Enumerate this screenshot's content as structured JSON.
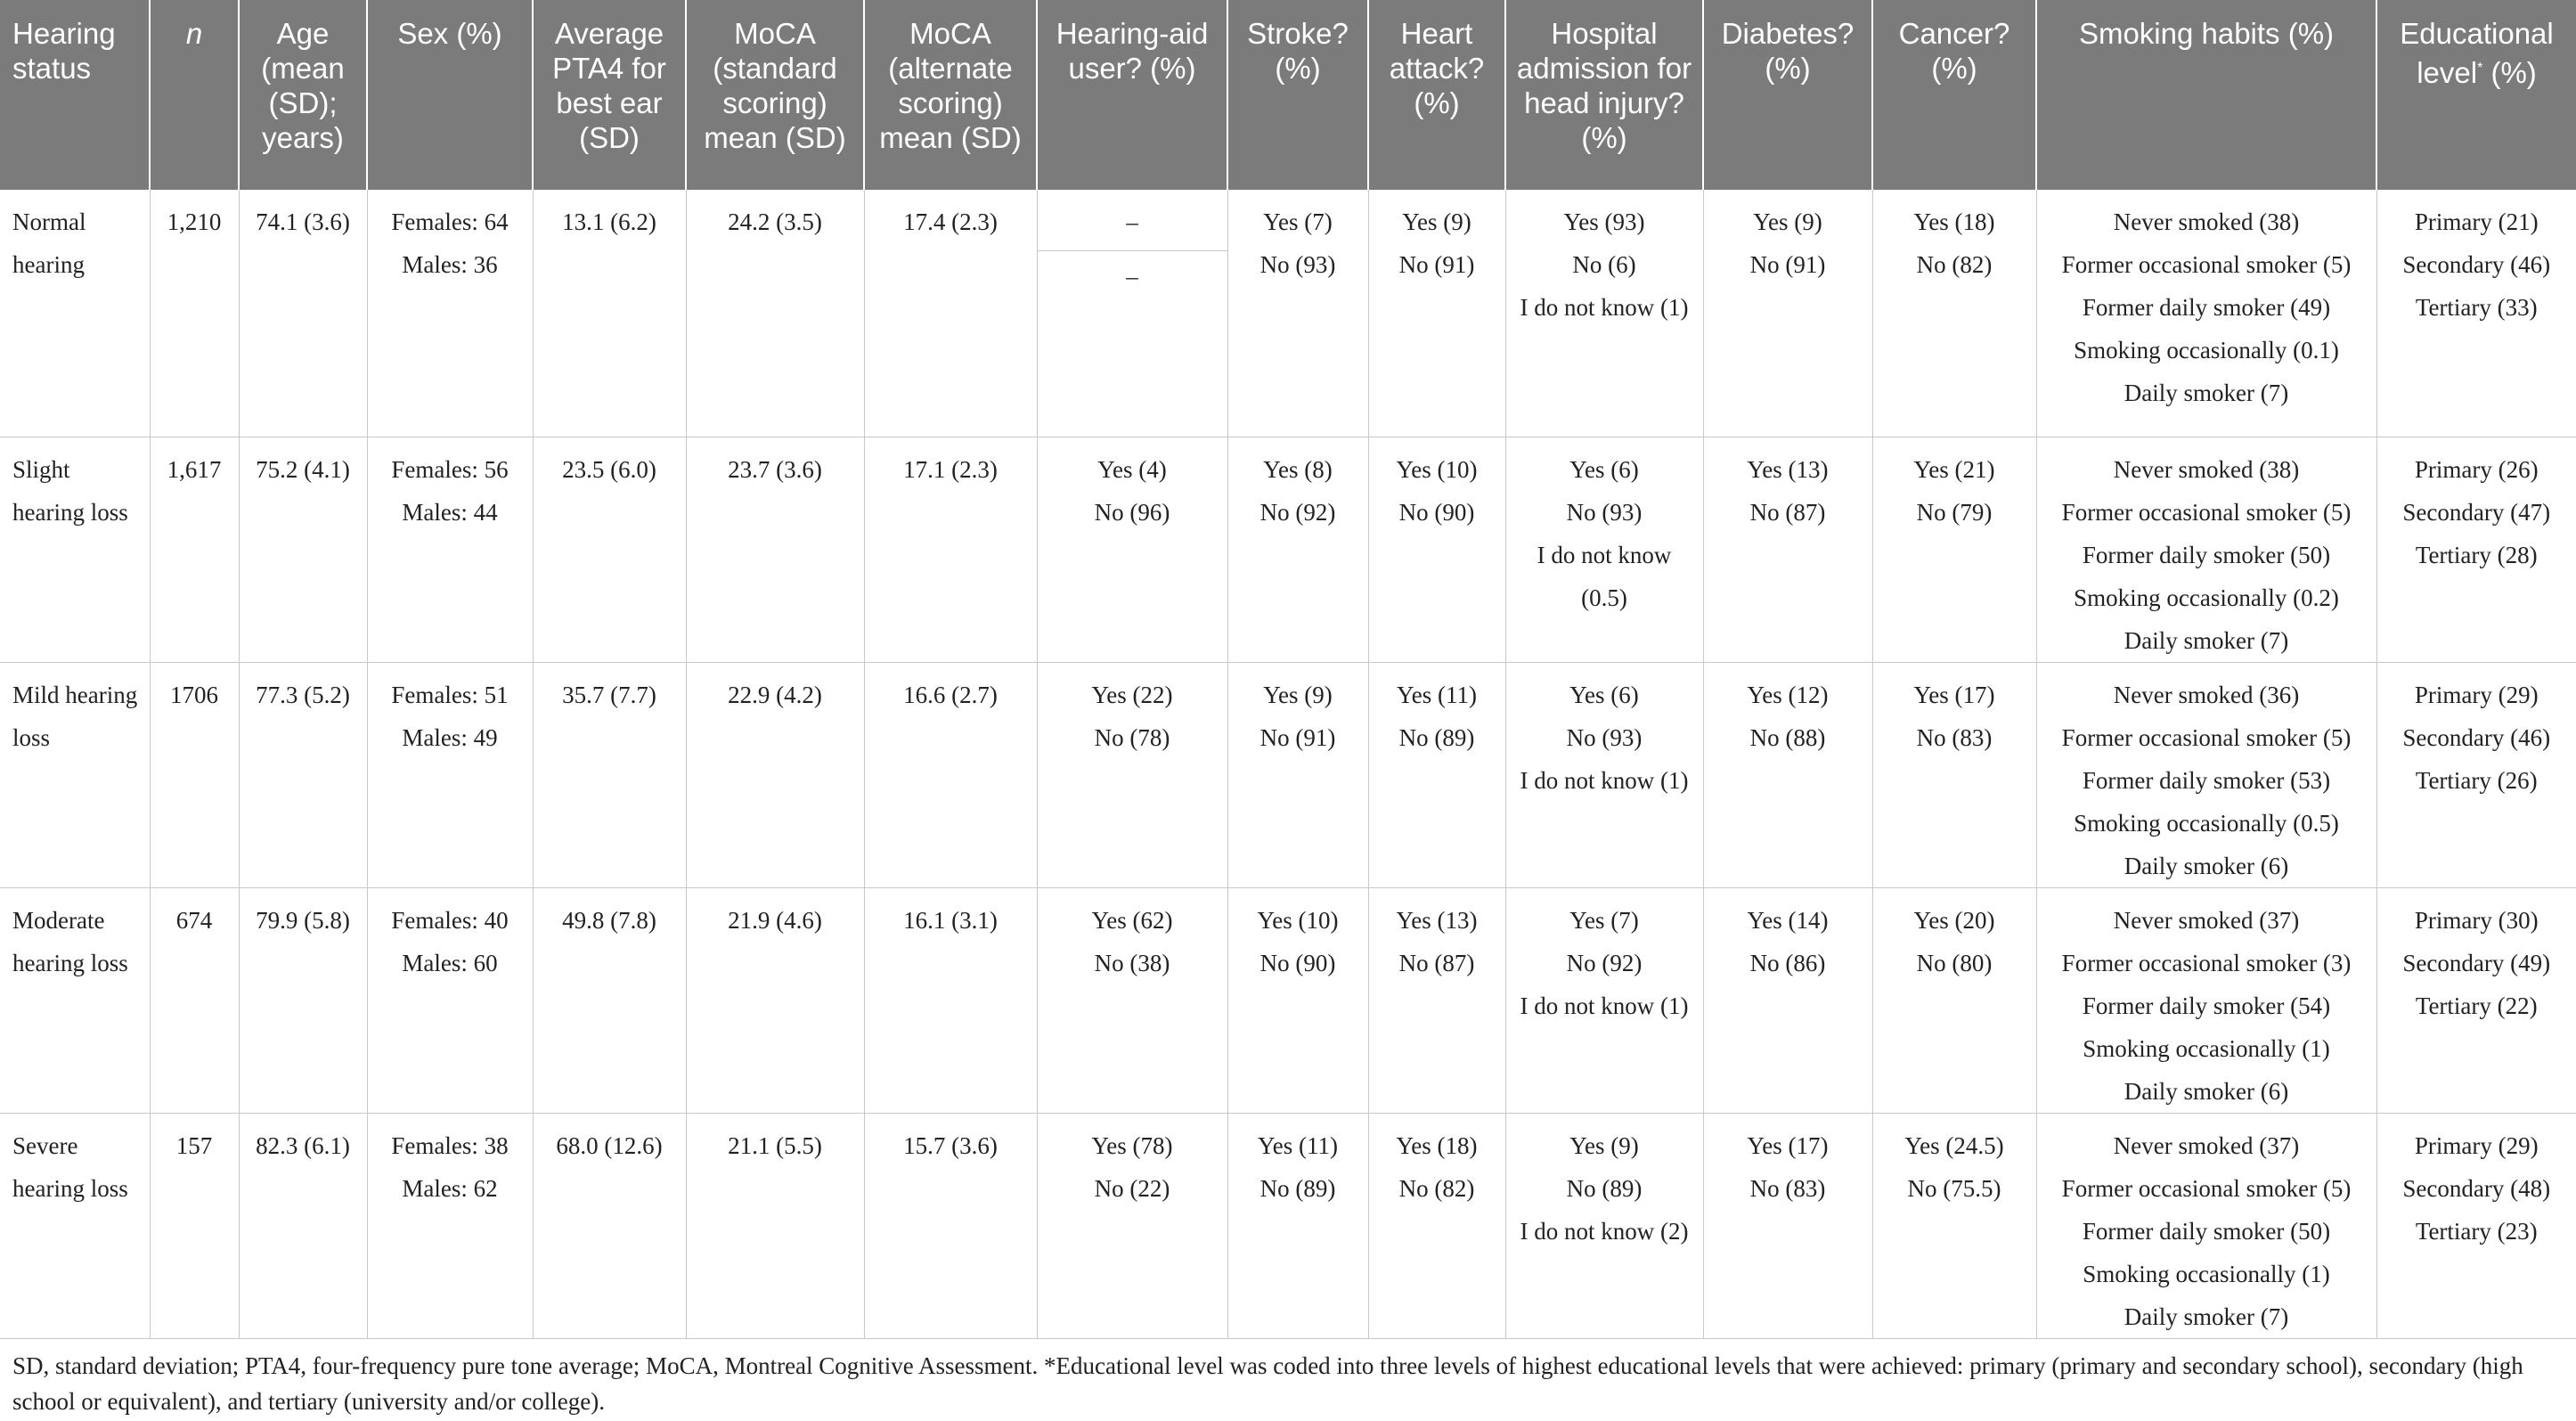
{
  "table": {
    "headers": {
      "hearing_status": "Hearing status",
      "n": "n",
      "age": "Age (mean (SD); years)",
      "sex": "Sex (%)",
      "pta4": "Average PTA4 for best ear (SD)",
      "moca_std": "MoCA (standard scoring) mean (SD)",
      "moca_alt": "MoCA (alternate scoring) mean (SD)",
      "hearing_aid": "Hearing-aid user? (%)",
      "stroke": "Stroke? (%)",
      "heart": "Heart attack? (%)",
      "head_injury": "Hospital admission for head injury? (%)",
      "diabetes": "Diabetes? (%)",
      "cancer": "Cancer? (%)",
      "smoking": "Smoking habits (%)",
      "education": "Educational level",
      "education_mark": "*",
      "education_unit": " (%)"
    },
    "rows": [
      {
        "status": "Normal hearing",
        "n": "1,210",
        "age": "74.1 (3.6)",
        "sex": [
          "Females: 64",
          "Males: 36"
        ],
        "pta4": "13.1 (6.2)",
        "moca_std": "24.2 (3.5)",
        "moca_alt": "17.4 (2.3)",
        "hearing_aid": [
          "–",
          "–"
        ],
        "stroke": [
          "Yes (7)",
          "No (93)"
        ],
        "heart": [
          "Yes (9)",
          "No (91)"
        ],
        "head_injury": [
          "Yes (93)",
          "No (6)",
          "I do not know (1)"
        ],
        "diabetes": [
          "Yes (9)",
          "No (91)"
        ],
        "cancer": [
          "Yes (18)",
          "No (82)"
        ],
        "smoking": [
          "Never smoked (38)",
          "Former occasional smoker (5)",
          "Former daily smoker (49)",
          "Smoking occasionally (0.1)",
          "Daily smoker (7)"
        ],
        "education": [
          "Primary (21)",
          "Secondary (46)",
          "Tertiary (33)"
        ]
      },
      {
        "status": "Slight hearing loss",
        "n": "1,617",
        "age": "75.2 (4.1)",
        "sex": [
          "Females: 56",
          "Males: 44"
        ],
        "pta4": "23.5 (6.0)",
        "moca_std": "23.7 (3.6)",
        "moca_alt": "17.1 (2.3)",
        "hearing_aid": [
          "Yes (4)",
          "No (96)"
        ],
        "stroke": [
          "Yes (8)",
          "No (92)"
        ],
        "heart": [
          "Yes (10)",
          "No (90)"
        ],
        "head_injury": [
          "Yes (6)",
          "No (93)",
          "I do not know (0.5)"
        ],
        "diabetes": [
          "Yes (13)",
          "No (87)"
        ],
        "cancer": [
          "Yes (21)",
          "No (79)"
        ],
        "smoking": [
          "Never smoked (38)",
          "Former occasional smoker (5)",
          "Former daily smoker (50)",
          "Smoking occasionally (0.2)",
          "Daily smoker (7)"
        ],
        "education": [
          "Primary (26)",
          "Secondary (47)",
          "Tertiary (28)"
        ]
      },
      {
        "status": "Mild hearing loss",
        "n": "1706",
        "age": "77.3 (5.2)",
        "sex": [
          "Females: 51",
          "Males: 49"
        ],
        "pta4": "35.7 (7.7)",
        "moca_std": "22.9 (4.2)",
        "moca_alt": "16.6 (2.7)",
        "hearing_aid": [
          "Yes (22)",
          "No (78)"
        ],
        "stroke": [
          "Yes (9)",
          "No (91)"
        ],
        "heart": [
          "Yes (11)",
          "No (89)"
        ],
        "head_injury": [
          "Yes (6)",
          "No (93)",
          "I do not know (1)"
        ],
        "diabetes": [
          "Yes (12)",
          "No (88)"
        ],
        "cancer": [
          "Yes (17)",
          "No (83)"
        ],
        "smoking": [
          "Never smoked (36)",
          "Former occasional smoker (5)",
          "Former daily smoker (53)",
          "Smoking occasionally (0.5)",
          "Daily smoker (6)"
        ],
        "education": [
          "Primary (29)",
          "Secondary (46)",
          "Tertiary (26)"
        ]
      },
      {
        "status": "Moderate hearing loss",
        "n": "674",
        "age": "79.9 (5.8)",
        "sex": [
          "Females: 40",
          "Males: 60"
        ],
        "pta4": "49.8 (7.8)",
        "moca_std": "21.9 (4.6)",
        "moca_alt": "16.1 (3.1)",
        "hearing_aid": [
          "Yes (62)",
          "No (38)"
        ],
        "stroke": [
          "Yes (10)",
          "No (90)"
        ],
        "heart": [
          "Yes (13)",
          "No (87)"
        ],
        "head_injury": [
          "Yes (7)",
          "No (92)",
          "I do not know (1)"
        ],
        "diabetes": [
          "Yes (14)",
          "No (86)"
        ],
        "cancer": [
          "Yes (20)",
          "No (80)"
        ],
        "smoking": [
          "Never smoked (37)",
          "Former occasional smoker (3)",
          "Former daily smoker (54)",
          "Smoking occasionally (1)",
          "Daily smoker (6)"
        ],
        "education": [
          "Primary (30)",
          "Secondary (49)",
          "Tertiary (22)"
        ]
      },
      {
        "status": "Severe hearing loss",
        "n": "157",
        "age": "82.3 (6.1)",
        "sex": [
          "Females: 38",
          "Males: 62"
        ],
        "pta4": "68.0 (12.6)",
        "moca_std": "21.1 (5.5)",
        "moca_alt": "15.7 (3.6)",
        "hearing_aid": [
          "Yes (78)",
          "No (22)"
        ],
        "stroke": [
          "Yes (11)",
          "No (89)"
        ],
        "heart": [
          "Yes (18)",
          "No (82)"
        ],
        "head_injury": [
          "Yes (9)",
          "No (89)",
          "I do not know (2)"
        ],
        "diabetes": [
          "Yes (17)",
          "No (83)"
        ],
        "cancer": [
          "Yes (24.5)",
          "No (75.5)"
        ],
        "smoking": [
          "Never smoked (37)",
          "Former occasional smoker (5)",
          "Former daily smoker (50)",
          "Smoking occasionally (1)",
          "Daily smoker (7)"
        ],
        "education": [
          "Primary (29)",
          "Secondary (48)",
          "Tertiary (23)"
        ]
      }
    ]
  },
  "footnote": "SD, standard deviation; PTA4, four-frequency pure tone average; MoCA, Montreal Cognitive Assessment. *Educational level was coded into three levels of highest educational levels that were achieved: primary (primary and secondary school), secondary (high school or equivalent), and tertiary (university and/or college)."
}
